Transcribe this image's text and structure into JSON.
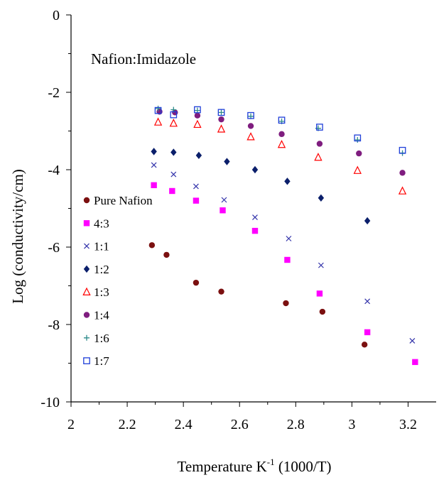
{
  "chart_data": {
    "type": "scatter",
    "annotation": "Nafion:Imidazole",
    "xlabel_main": "Temperature K",
    "xlabel_sup": "-1",
    "xlabel_suffix": " (1000/T)",
    "ylabel": "Log (conductivity/cm)",
    "xlim": [
      2,
      3.3
    ],
    "ylim": [
      -10,
      0
    ],
    "xticks": [
      2,
      2.2,
      2.4,
      2.6,
      2.8,
      3,
      3.2
    ],
    "xtick_labels": [
      "2",
      "2.2",
      "2.4",
      "2.6",
      "2.8",
      "3",
      "3.2"
    ],
    "yticks": [
      0,
      -2,
      -4,
      -6,
      -8,
      -10
    ],
    "ytick_labels": [
      "0",
      "-2",
      "-4",
      "-6",
      "-8",
      "-10"
    ],
    "grid": false,
    "legend_position": "left-middle",
    "series": [
      {
        "name": "Pure Nafion",
        "marker": "circle",
        "color": "#7B1010",
        "points": [
          [
            2.288,
            -5.95
          ],
          [
            2.34,
            -6.2
          ],
          [
            2.445,
            -6.92
          ],
          [
            2.535,
            -7.15
          ],
          [
            2.765,
            -7.45
          ],
          [
            2.895,
            -7.67
          ],
          [
            3.045,
            -8.52
          ]
        ]
      },
      {
        "name": "4:3",
        "marker": "square",
        "color": "#FF00FF",
        "points": [
          [
            2.295,
            -4.4
          ],
          [
            2.36,
            -4.55
          ],
          [
            2.445,
            -4.8
          ],
          [
            2.54,
            -5.05
          ],
          [
            2.655,
            -5.58
          ],
          [
            2.77,
            -6.33
          ],
          [
            2.885,
            -7.2
          ],
          [
            3.055,
            -8.2
          ],
          [
            3.225,
            -8.97
          ]
        ]
      },
      {
        "name": "1:1",
        "marker": "x",
        "color": "#3333AA",
        "points": [
          [
            2.295,
            -3.88
          ],
          [
            2.365,
            -4.12
          ],
          [
            2.445,
            -4.43
          ],
          [
            2.545,
            -4.78
          ],
          [
            2.655,
            -5.23
          ],
          [
            2.775,
            -5.78
          ],
          [
            2.89,
            -6.47
          ],
          [
            3.055,
            -7.4
          ],
          [
            3.215,
            -8.42
          ]
        ]
      },
      {
        "name": "1:2",
        "marker": "diamond",
        "color": "#0B1F6B",
        "points": [
          [
            2.295,
            -3.53
          ],
          [
            2.365,
            -3.55
          ],
          [
            2.455,
            -3.63
          ],
          [
            2.555,
            -3.79
          ],
          [
            2.655,
            -4.0
          ],
          [
            2.77,
            -4.3
          ],
          [
            2.89,
            -4.73
          ],
          [
            3.055,
            -5.32
          ]
        ]
      },
      {
        "name": "1:3",
        "marker": "triangle",
        "color": "#FF0000",
        "points": [
          [
            2.31,
            -2.77
          ],
          [
            2.365,
            -2.8
          ],
          [
            2.45,
            -2.83
          ],
          [
            2.535,
            -2.95
          ],
          [
            2.64,
            -3.15
          ],
          [
            2.75,
            -3.35
          ],
          [
            2.88,
            -3.68
          ],
          [
            3.02,
            -4.02
          ],
          [
            3.18,
            -4.55
          ]
        ]
      },
      {
        "name": "1:4",
        "marker": "circle",
        "color": "#7F1D7F",
        "points": [
          [
            2.315,
            -2.5
          ],
          [
            2.37,
            -2.52
          ],
          [
            2.45,
            -2.6
          ],
          [
            2.535,
            -2.7
          ],
          [
            2.64,
            -2.87
          ],
          [
            2.75,
            -3.08
          ],
          [
            2.885,
            -3.33
          ],
          [
            3.025,
            -3.58
          ],
          [
            3.18,
            -4.08
          ]
        ]
      },
      {
        "name": "1:6",
        "marker": "plus",
        "color": "#2E8B8B",
        "points": [
          [
            2.31,
            -2.42
          ],
          [
            2.365,
            -2.45
          ],
          [
            2.45,
            -2.47
          ],
          [
            2.535,
            -2.52
          ],
          [
            2.64,
            -2.62
          ],
          [
            2.75,
            -2.75
          ],
          [
            2.88,
            -2.93
          ],
          [
            3.02,
            -3.23
          ],
          [
            3.18,
            -3.57
          ]
        ]
      },
      {
        "name": "1:7",
        "marker": "square-open",
        "color": "#1F3FD9",
        "points": [
          [
            2.31,
            -2.47
          ],
          [
            2.365,
            -2.58
          ],
          [
            2.45,
            -2.45
          ],
          [
            2.535,
            -2.52
          ],
          [
            2.64,
            -2.6
          ],
          [
            2.75,
            -2.72
          ],
          [
            2.885,
            -2.9
          ],
          [
            3.02,
            -3.18
          ],
          [
            3.18,
            -3.5
          ]
        ]
      }
    ]
  }
}
